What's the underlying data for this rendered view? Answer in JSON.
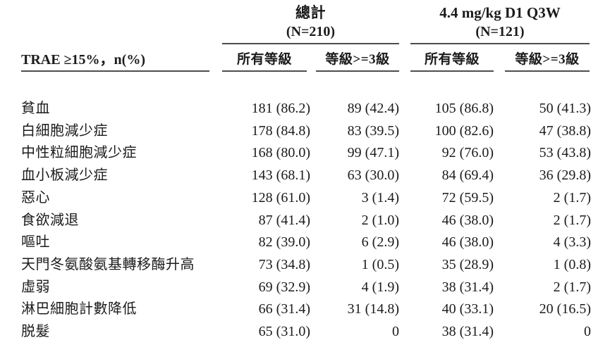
{
  "table": {
    "row_header_label": "TRAE ≥15%，n(%)",
    "groups": [
      {
        "title": "總計",
        "n_label": "(N=210)"
      },
      {
        "title": "4.4 mg/kg D1 Q3W",
        "n_label": "(N=121)"
      }
    ],
    "sub_headers": {
      "total_all_grades": "所有等級",
      "total_grade3plus": "等級>=3級",
      "dose_all_grades": "所有等級",
      "dose_grade3plus": "等級>=3級"
    },
    "rows": [
      {
        "label": "貧血",
        "values": [
          "181 (86.2)",
          "89 (42.4)",
          "105 (86.8)",
          "50 (41.3)"
        ]
      },
      {
        "label": "白細胞減少症",
        "values": [
          "178 (84.8)",
          "83 (39.5)",
          "100 (82.6)",
          "47 (38.8)"
        ]
      },
      {
        "label": "中性粒細胞減少症",
        "values": [
          "168 (80.0)",
          "99 (47.1)",
          "92 (76.0)",
          "53 (43.8)"
        ]
      },
      {
        "label": "血小板減少症",
        "values": [
          "143 (68.1)",
          "63 (30.0)",
          "84 (69.4)",
          "36 (29.8)"
        ]
      },
      {
        "label": "惡心",
        "values": [
          "128 (61.0)",
          "3 (1.4)",
          "72 (59.5)",
          "2 (1.7)"
        ]
      },
      {
        "label": "食欲減退",
        "values": [
          "87 (41.4)",
          "2 (1.0)",
          "46 (38.0)",
          "2 (1.7)"
        ]
      },
      {
        "label": "嘔吐",
        "values": [
          "82 (39.0)",
          "6 (2.9)",
          "46 (38.0)",
          "4 (3.3)"
        ]
      },
      {
        "label": "天門冬氨酸氨基轉移酶升高",
        "values": [
          "73 (34.8)",
          "1 (0.5)",
          "35 (28.9)",
          "1 (0.8)"
        ]
      },
      {
        "label": "虛弱",
        "values": [
          "69 (32.9)",
          "4 (1.9)",
          "38 (31.4)",
          "2 (1.7)"
        ]
      },
      {
        "label": "淋巴細胞計數降低",
        "values": [
          "66 (31.4)",
          "31 (14.8)",
          "40 (33.1)",
          "20 (16.5)"
        ]
      },
      {
        "label": "脱髮",
        "values": [
          "65 (31.0)",
          "0",
          "38 (31.4)",
          "0"
        ]
      }
    ],
    "colors": {
      "text": "#1b1b1b",
      "rule": "#4d4d4d",
      "background": "#ffffff"
    }
  }
}
